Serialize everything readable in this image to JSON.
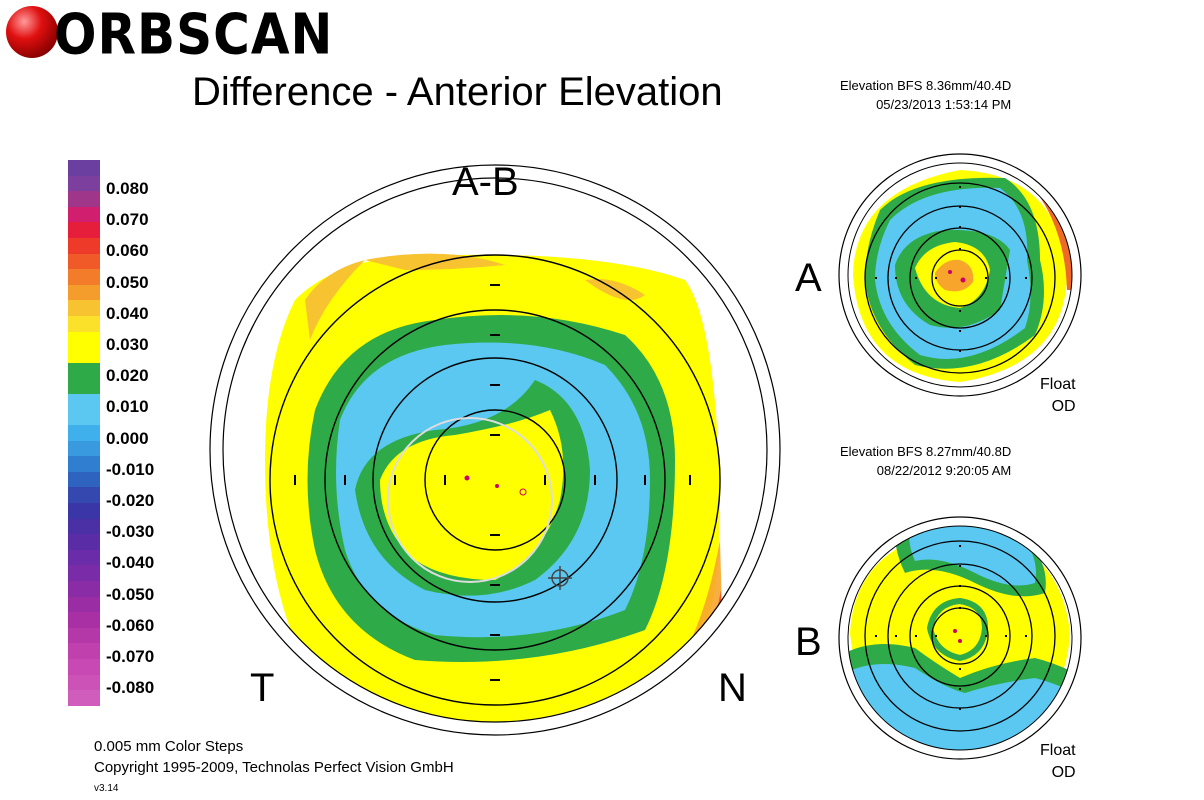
{
  "header": {
    "logo_text": "ORBSCAN",
    "title": "Difference - Anterior Elevation"
  },
  "map_a": {
    "label": "A",
    "bfs_line": "Elevation BFS   8.36mm/40.4D",
    "date_line": "05/23/2013 1:53:14 PM",
    "mode": "Float",
    "eye": "OD"
  },
  "map_b": {
    "label": "B",
    "bfs_line": "Elevation BFS   8.27mm/40.8D",
    "date_line": "08/22/2012 9:20:05 AM",
    "mode": "Float",
    "eye": "OD"
  },
  "main_map": {
    "label_top": "A-B",
    "label_left": "T",
    "label_right": "N"
  },
  "color_scale": {
    "labels": [
      "0.080",
      "0.070",
      "0.060",
      "0.050",
      "0.040",
      "0.030",
      "0.020",
      "0.010",
      "0.000",
      "-0.010",
      "-0.020",
      "-0.030",
      "-0.040",
      "-0.050",
      "-0.060",
      "-0.070",
      "-0.080"
    ],
    "colors": [
      "#6a3fa0",
      "#7d3f9e",
      "#a0368a",
      "#d21e6e",
      "#e61e3c",
      "#ee3a28",
      "#f05a28",
      "#f27c2a",
      "#f49c2c",
      "#f7c330",
      "#fbe12a",
      "#ffff00",
      "#ffff00",
      "#2faa48",
      "#2faa48",
      "#5ac8f0",
      "#5ac8f0",
      "#3fb0ec",
      "#3a9ae0",
      "#2f7ed0",
      "#2e64c0",
      "#3448b0",
      "#3a36a8",
      "#4a2fa5",
      "#5a2ca6",
      "#6a2ca8",
      "#7a2ca8",
      "#8a2ca6",
      "#9a2ca4",
      "#a830a4",
      "#b438a8",
      "#c040ae",
      "#c848b4",
      "#cc52b8",
      "#d05cbc"
    ]
  },
  "footer": {
    "steps": "0.005 mm Color Steps",
    "copyright": "Copyright 1995-2009, Technolas Perfect Vision GmbH",
    "version": "v3.14"
  }
}
